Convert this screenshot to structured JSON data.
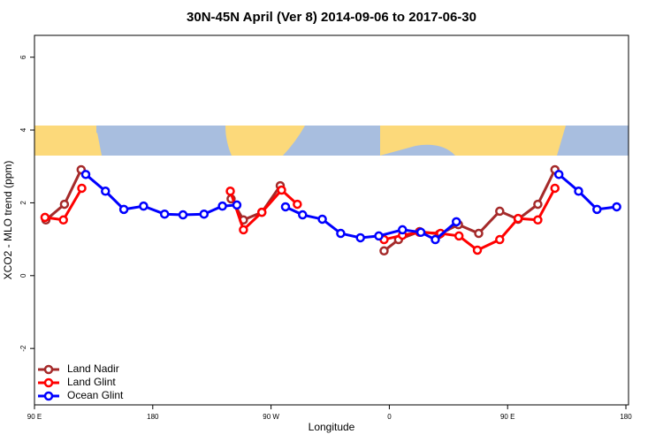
{
  "chart_data": {
    "type": "line",
    "title": "30N-45N April (Ver 8)   2014-09-06 to 2017-06-30",
    "x_label": "Longitude",
    "y_label": "XCO2 - MLO trend (ppm)",
    "xlim": [
      90,
      542
    ],
    "ylim": [
      -3.55,
      6.6
    ],
    "xticks": [
      {
        "value": 90,
        "label": "90 E"
      },
      180,
      {
        "value": 270,
        "label": "90 W"
      },
      {
        "value": 360,
        "label": "0"
      },
      {
        "value": 450,
        "label": "90 E"
      },
      {
        "value": 540,
        "label": "180"
      }
    ],
    "yticks": [
      -2,
      0,
      2,
      4,
      6
    ],
    "legend": "bottom-left",
    "series": [
      {
        "name": "Land Nadir",
        "color": "#a52a2a",
        "x": [
          98.7,
          112.8,
          125.5,
          null,
          239.6,
          249,
          263,
          277,
          null,
          356,
          367,
          383,
          398,
          412.6,
          428,
          444,
          458,
          473,
          486
        ],
        "values": [
          1.53,
          1.96,
          2.91,
          null,
          2.11,
          1.53,
          1.74,
          2.47,
          null,
          0.68,
          0.99,
          1.21,
          1.14,
          1.4,
          1.16,
          1.77,
          1.55,
          1.96,
          2.91
        ]
      },
      {
        "name": "Land Glint",
        "color": "#ff0000",
        "x": [
          98,
          112,
          126,
          null,
          239,
          249,
          263,
          278,
          290,
          null,
          356,
          370,
          383,
          399,
          413,
          427,
          444,
          458,
          473,
          486
        ],
        "values": [
          1.6,
          1.53,
          2.4,
          null,
          2.32,
          1.26,
          1.74,
          2.35,
          1.96,
          null,
          0.99,
          1.11,
          1.19,
          1.16,
          1.09,
          0.7,
          0.99,
          1.57,
          1.53,
          2.4
        ]
      },
      {
        "name": "Ocean Glint",
        "color": "#0000ff",
        "x": [
          129,
          144,
          158,
          173,
          189,
          203,
          219,
          233,
          244,
          null,
          281,
          294,
          309,
          323,
          338,
          352,
          370,
          384,
          395,
          411,
          null,
          489,
          504,
          518,
          533
        ],
        "values": [
          2.78,
          2.32,
          1.82,
          1.91,
          1.69,
          1.67,
          1.69,
          1.91,
          1.94,
          null,
          1.89,
          1.67,
          1.55,
          1.16,
          1.04,
          1.09,
          1.26,
          1.19,
          0.99,
          1.48,
          null,
          2.78,
          2.32,
          1.82,
          1.89
        ]
      }
    ]
  }
}
